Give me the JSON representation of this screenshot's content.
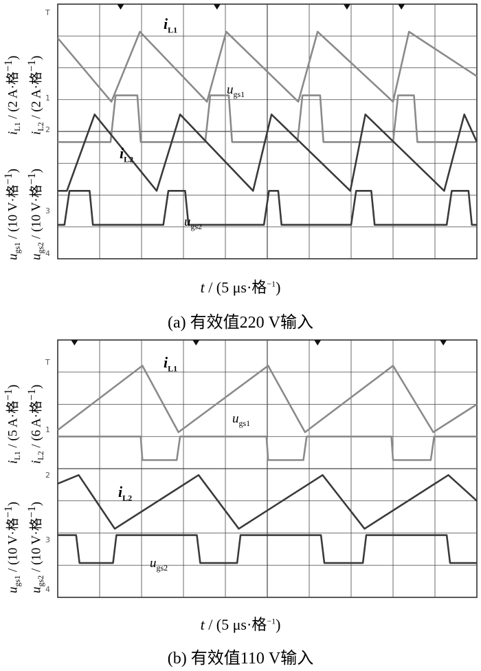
{
  "panels": [
    {
      "id": "a",
      "caption": "(a)  有效值220 V输入",
      "xlabel_var": "t",
      "xlabel_rest": " / (5 μs·格",
      "xlabel_sup": "−1",
      "xlabel_end": ")",
      "ylabels": [
        {
          "var": "i",
          "sub": "L1",
          "unit": " / (2 A·格",
          "sup": "−1",
          "end": ")"
        },
        {
          "var": "i",
          "sub": "L2",
          "unit": " / (2 A·格",
          "sup": "−1",
          "end": ")"
        },
        {
          "var": "u",
          "sub": "gs1",
          "unit": " / (10 V·格",
          "sup": "−1",
          "end": ")"
        },
        {
          "var": "u",
          "sub": "gs2",
          "unit": " / (10 V·格",
          "sup": "−1",
          "end": ")"
        }
      ],
      "signal_labels": {
        "iL1": {
          "var": "i",
          "sub": "L1"
        },
        "ugs1": {
          "var": "u",
          "sub": "gs1"
        },
        "iL2": {
          "var": "i",
          "sub": "L2"
        },
        "ugs2": {
          "var": "u",
          "sub": "gs2"
        }
      },
      "channel_markers": [
        "T",
        "1",
        "2",
        "3",
        "4"
      ]
    },
    {
      "id": "b",
      "caption": "(b)  有效值110 V输入",
      "xlabel_var": "t",
      "xlabel_rest": " / (5 μs·格",
      "xlabel_sup": "−1",
      "xlabel_end": ")",
      "ylabels": [
        {
          "var": "i",
          "sub": "L1",
          "unit": " / (5 A·格",
          "sup": "−1",
          "end": ")"
        },
        {
          "var": "i",
          "sub": "L2",
          "unit": " / (6 A·格",
          "sup": "−1",
          "end": ")"
        },
        {
          "var": "u",
          "sub": "gs1",
          "unit": " / (10 V·格",
          "sup": "−1",
          "end": ")"
        },
        {
          "var": "u",
          "sub": "gs2",
          "unit": " / (10 V·格",
          "sup": "−1",
          "end": ")"
        }
      ],
      "signal_labels": {
        "iL1": {
          "var": "i",
          "sub": "L1"
        },
        "ugs1": {
          "var": "u",
          "sub": "gs1"
        },
        "iL2": {
          "var": "i",
          "sub": "L2"
        },
        "ugs2": {
          "var": "u",
          "sub": "gs2"
        }
      },
      "channel_markers": [
        "T",
        "1",
        "2",
        "3",
        "4"
      ]
    }
  ],
  "chart_data": [
    {
      "type": "line",
      "panel": "a",
      "x_unit_per_div": "5 μs",
      "xlim": [
        0,
        50
      ],
      "grid": true,
      "series": [
        {
          "name": "iL1",
          "color": "#8a8a8a",
          "x": [
            0,
            6.4,
            9.8,
            17.8,
            20.1,
            28.7,
            31.0,
            40.0,
            41.9,
            50.0
          ],
          "y": [
            2.4,
            -0.6,
            2.7,
            -0.6,
            2.7,
            -0.6,
            2.7,
            -0.6,
            2.7,
            0.6
          ]
        },
        {
          "name": "ugs1",
          "color": "#8a8a8a",
          "x": [
            0,
            6.3,
            6.9,
            9.5,
            9.9,
            17.6,
            18.2,
            20.4,
            20.8,
            28.6,
            29.2,
            31.3,
            31.7,
            40.0,
            40.6,
            42.5,
            42.9,
            50.0
          ],
          "y": [
            -2.5,
            -2.5,
            -0.3,
            -0.3,
            -2.5,
            -2.5,
            -0.3,
            -0.3,
            -2.5,
            -2.5,
            -0.3,
            -0.3,
            -2.5,
            -2.5,
            -0.3,
            -0.3,
            -2.5,
            -2.5
          ]
        },
        {
          "name": "iL2",
          "color": "#3a3a3a",
          "x": [
            0,
            1.1,
            4.4,
            11.8,
            14.6,
            23.3,
            25.5,
            34.9,
            36.7,
            46.1,
            48.5,
            50.0
          ],
          "y": [
            -4.8,
            -4.8,
            -1.2,
            -4.8,
            -1.2,
            -4.8,
            -1.2,
            -4.8,
            -1.2,
            -4.8,
            -1.2,
            -2.5
          ]
        },
        {
          "name": "ugs2",
          "color": "#3a3a3a",
          "x": [
            0,
            0.8,
            1.4,
            3.8,
            4.2,
            12.6,
            13.2,
            15.2,
            15.6,
            24.6,
            25.2,
            26.3,
            26.7,
            35.0,
            35.6,
            37.4,
            37.8,
            46.4,
            47.0,
            49.0,
            49.4,
            50.0
          ],
          "y": [
            -6.4,
            -6.4,
            -4.8,
            -4.8,
            -6.4,
            -6.4,
            -4.8,
            -4.8,
            -6.4,
            -6.4,
            -4.8,
            -4.8,
            -6.4,
            -6.4,
            -4.8,
            -4.8,
            -6.4,
            -6.4,
            -4.8,
            -4.8,
            -6.4,
            -6.4
          ]
        }
      ]
    },
    {
      "type": "line",
      "panel": "b",
      "x_unit_per_div": "5 μs",
      "xlim": [
        0,
        50
      ],
      "grid": true,
      "series": [
        {
          "name": "iL1",
          "color": "#8a8a8a",
          "x": [
            0,
            10.1,
            14.4,
            25.1,
            29.5,
            40.0,
            44.8,
            50.0
          ],
          "y": [
            -0.2,
            2.8,
            -0.3,
            2.8,
            -0.3,
            2.8,
            -0.3,
            1.0
          ]
        },
        {
          "name": "ugs1",
          "color": "#8a8a8a",
          "x": [
            0,
            9.9,
            10.1,
            14.2,
            14.6,
            24.9,
            25.1,
            29.3,
            29.7,
            39.8,
            40.0,
            44.5,
            44.9,
            50.0
          ],
          "y": [
            -0.5,
            -0.5,
            -1.6,
            -1.6,
            -0.5,
            -0.5,
            -1.6,
            -1.6,
            -0.5,
            -0.5,
            -1.6,
            -1.6,
            -0.5,
            -0.5
          ]
        },
        {
          "name": "iL2",
          "color": "#3a3a3a",
          "x": [
            0,
            2.5,
            6.8,
            16.8,
            21.6,
            31.6,
            36.6,
            46.6,
            50.0
          ],
          "y": [
            -2.7,
            -2.3,
            -4.8,
            -2.3,
            -4.8,
            -2.3,
            -4.8,
            -2.3,
            -3.5
          ]
        },
        {
          "name": "ugs2",
          "color": "#3a3a3a",
          "x": [
            0,
            2.2,
            2.6,
            6.6,
            7.0,
            16.6,
            17.0,
            21.4,
            21.8,
            31.4,
            31.8,
            36.4,
            36.8,
            46.4,
            46.8,
            50.0
          ],
          "y": [
            -5.1,
            -5.1,
            -6.4,
            -6.4,
            -5.1,
            -5.1,
            -6.4,
            -6.4,
            -5.1,
            -5.1,
            -6.4,
            -6.4,
            -5.1,
            -5.1,
            -6.4,
            -6.4
          ]
        }
      ]
    }
  ]
}
